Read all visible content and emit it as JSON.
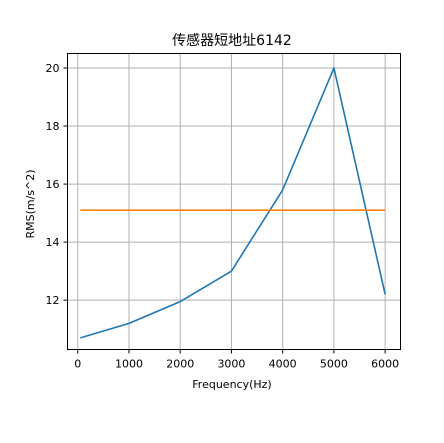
{
  "chart_data": {
    "type": "line",
    "title": "传感器短地址6142",
    "xlabel": "Frequency(Hz)",
    "ylabel": "RMS(m/s^2)",
    "x": [
      50,
      1000,
      2000,
      3000,
      4000,
      5000,
      6000
    ],
    "series": [
      {
        "color": "#1f77b4",
        "values": [
          10.7,
          11.2,
          11.95,
          13.0,
          15.8,
          20.0,
          12.2
        ]
      },
      {
        "color": "#ff7f0e",
        "values": [
          15.1,
          15.1,
          15.1,
          15.1,
          15.1,
          15.1,
          15.1
        ]
      }
    ],
    "xlim": [
      -200,
      6300
    ],
    "ylim": [
      10.3,
      20.5
    ],
    "xticks": [
      0,
      1000,
      2000,
      3000,
      4000,
      5000,
      6000
    ],
    "xtick_labels": [
      "0",
      "1000",
      "2000",
      "3000",
      "4000",
      "5000",
      "6000"
    ],
    "yticks": [
      12,
      14,
      16,
      18,
      20
    ],
    "ytick_labels": [
      "12",
      "14",
      "16",
      "18",
      "20"
    ],
    "grid": true,
    "legend": false
  }
}
